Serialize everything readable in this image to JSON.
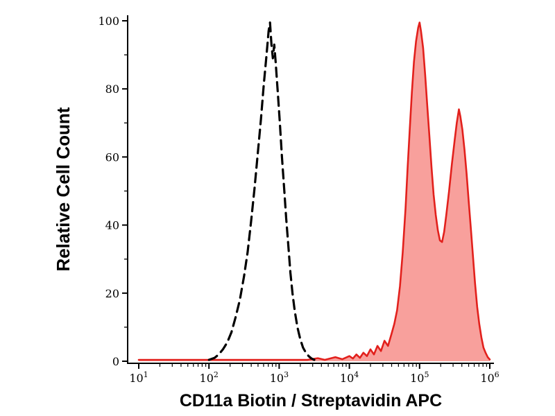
{
  "figure": {
    "background": "#ffffff"
  },
  "chart_data": {
    "type": "area",
    "subtype": "flow-cytometry-histogram",
    "title": "",
    "xlabel": "CD11a Biotin / Streptavidin APC",
    "ylabel": "Relative Cell Count",
    "x_scale": "log10",
    "x_range_log10": [
      1,
      6
    ],
    "ylim": [
      0,
      100
    ],
    "y_major_ticks": [
      0,
      20,
      40,
      60,
      80,
      100
    ],
    "y_minor_ticks": [
      10,
      30,
      50,
      70,
      90
    ],
    "x_major_tick_exponents": [
      1,
      2,
      3,
      4,
      5,
      6
    ],
    "x_tick_base": "10",
    "grid": false,
    "legend": "none",
    "axis_color": "#000000",
    "series": [
      {
        "name": "red-filled",
        "line_color": "#e2201c",
        "line_style": "solid",
        "line_width": 2.6,
        "fill": "#f8a09c",
        "peaks": [
          {
            "x_log10": 5.0,
            "y": 99.5
          },
          {
            "x_log10": 5.56,
            "y": 74
          }
        ],
        "valley": {
          "x_log10": 5.32,
          "y": 35
        },
        "points_log10x_y": [
          [
            1.0,
            0.4
          ],
          [
            1.2,
            0.4
          ],
          [
            1.4,
            0.4
          ],
          [
            1.6,
            0.4
          ],
          [
            1.8,
            0.4
          ],
          [
            2.0,
            0.4
          ],
          [
            2.2,
            0.4
          ],
          [
            2.4,
            0.4
          ],
          [
            2.6,
            0.4
          ],
          [
            2.8,
            0.4
          ],
          [
            3.0,
            0.4
          ],
          [
            3.2,
            0.4
          ],
          [
            3.4,
            0.4
          ],
          [
            3.55,
            0.9
          ],
          [
            3.65,
            0.4
          ],
          [
            3.8,
            1.2
          ],
          [
            3.9,
            0.6
          ],
          [
            4.0,
            1.5
          ],
          [
            4.05,
            0.8
          ],
          [
            4.1,
            2.0
          ],
          [
            4.15,
            1.0
          ],
          [
            4.2,
            2.5
          ],
          [
            4.25,
            1.5
          ],
          [
            4.3,
            3.5
          ],
          [
            4.35,
            2.0
          ],
          [
            4.4,
            4.5
          ],
          [
            4.45,
            3.0
          ],
          [
            4.5,
            6.0
          ],
          [
            4.55,
            4.5
          ],
          [
            4.6,
            8.0
          ],
          [
            4.64,
            11
          ],
          [
            4.68,
            15
          ],
          [
            4.72,
            22
          ],
          [
            4.76,
            32
          ],
          [
            4.8,
            45
          ],
          [
            4.83,
            57
          ],
          [
            4.86,
            68
          ],
          [
            4.89,
            79
          ],
          [
            4.92,
            88
          ],
          [
            4.95,
            94
          ],
          [
            4.98,
            98
          ],
          [
            5.0,
            99.5
          ],
          [
            5.02,
            97
          ],
          [
            5.05,
            92
          ],
          [
            5.08,
            84
          ],
          [
            5.11,
            75
          ],
          [
            5.14,
            66
          ],
          [
            5.17,
            57
          ],
          [
            5.2,
            49
          ],
          [
            5.23,
            43
          ],
          [
            5.26,
            38.5
          ],
          [
            5.29,
            35.5
          ],
          [
            5.32,
            35
          ],
          [
            5.35,
            38
          ],
          [
            5.38,
            43
          ],
          [
            5.42,
            50
          ],
          [
            5.46,
            58
          ],
          [
            5.5,
            65
          ],
          [
            5.53,
            70
          ],
          [
            5.56,
            74
          ],
          [
            5.58,
            72
          ],
          [
            5.61,
            68
          ],
          [
            5.64,
            62
          ],
          [
            5.67,
            55
          ],
          [
            5.7,
            47
          ],
          [
            5.73,
            39
          ],
          [
            5.76,
            31
          ],
          [
            5.79,
            23
          ],
          [
            5.82,
            16
          ],
          [
            5.85,
            11
          ],
          [
            5.88,
            7
          ],
          [
            5.91,
            4
          ],
          [
            5.94,
            2.5
          ],
          [
            5.97,
            1.2
          ],
          [
            6.0,
            0.5
          ]
        ]
      },
      {
        "name": "black-dashed",
        "line_color": "#000000",
        "line_style": "dashed",
        "line_width": 3.2,
        "dash_pattern": "13 8",
        "fill": "none",
        "peaks": [
          {
            "x_log10": 2.87,
            "y": 99.5
          }
        ],
        "points_log10x_y": [
          [
            2.0,
            0.4
          ],
          [
            2.08,
            1
          ],
          [
            2.14,
            2
          ],
          [
            2.2,
            3.5
          ],
          [
            2.26,
            5.5
          ],
          [
            2.32,
            8.5
          ],
          [
            2.38,
            13
          ],
          [
            2.44,
            18
          ],
          [
            2.5,
            25
          ],
          [
            2.55,
            32
          ],
          [
            2.6,
            41
          ],
          [
            2.65,
            51
          ],
          [
            2.7,
            62
          ],
          [
            2.74,
            71
          ],
          [
            2.78,
            81
          ],
          [
            2.82,
            90
          ],
          [
            2.85,
            97
          ],
          [
            2.87,
            99.5
          ],
          [
            2.89,
            93
          ],
          [
            2.91,
            89
          ],
          [
            2.93,
            93
          ],
          [
            2.95,
            88
          ],
          [
            2.98,
            79
          ],
          [
            3.01,
            70
          ],
          [
            3.04,
            60
          ],
          [
            3.07,
            51
          ],
          [
            3.1,
            42
          ],
          [
            3.13,
            34
          ],
          [
            3.16,
            26
          ],
          [
            3.19,
            20
          ],
          [
            3.22,
            15
          ],
          [
            3.26,
            10
          ],
          [
            3.3,
            6.5
          ],
          [
            3.34,
            4
          ],
          [
            3.38,
            2.5
          ],
          [
            3.42,
            1.5
          ],
          [
            3.46,
            0.8
          ],
          [
            3.5,
            0.4
          ]
        ]
      }
    ]
  }
}
